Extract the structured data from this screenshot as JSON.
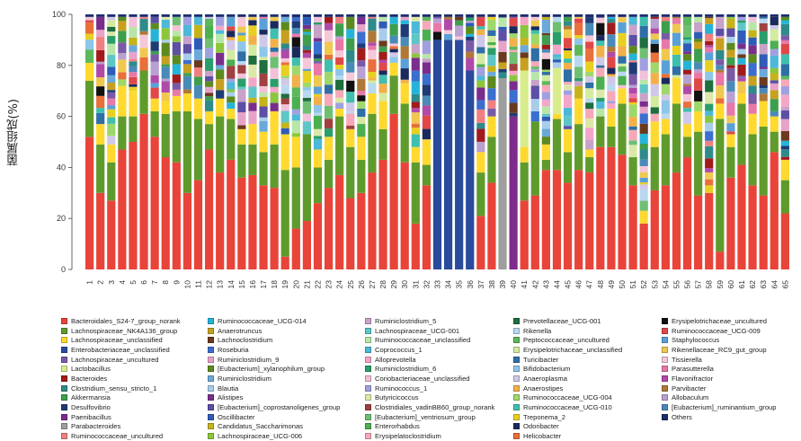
{
  "chart_data": {
    "type": "stacked-bar",
    "ylabel": "菌属组成(%)",
    "ylim": [
      0,
      100
    ],
    "yticks": [
      0,
      20,
      40,
      60,
      80,
      100
    ],
    "categories": [
      "1",
      "2",
      "3",
      "4",
      "5",
      "6",
      "7",
      "8",
      "9",
      "10",
      "11",
      "12",
      "13",
      "14",
      "15",
      "16",
      "17",
      "18",
      "19",
      "20",
      "21",
      "22",
      "23",
      "24",
      "25",
      "26",
      "27",
      "28",
      "29",
      "30",
      "31",
      "32",
      "33",
      "34",
      "35",
      "36",
      "37",
      "38",
      "39",
      "40",
      "41",
      "42",
      "43",
      "44",
      "45",
      "46",
      "47",
      "48",
      "49",
      "50",
      "51",
      "52",
      "53",
      "54",
      "55",
      "56",
      "57",
      "58",
      "59",
      "60",
      "61",
      "62",
      "63",
      "64",
      "65"
    ],
    "major_series": {
      "Bacteroidales_S24-7_group_norank": [
        52,
        30,
        27,
        47,
        50,
        61,
        52,
        44,
        42,
        30,
        35,
        47,
        38,
        43,
        36,
        37,
        33,
        32,
        5,
        16,
        19,
        26,
        32,
        37,
        28,
        30,
        38,
        43,
        61,
        42,
        18,
        33,
        0,
        0,
        0,
        0,
        21,
        34,
        0,
        0,
        27,
        29,
        39,
        39,
        34,
        39,
        38,
        48,
        48,
        45,
        33,
        18,
        31,
        33,
        38,
        44,
        29,
        30,
        7,
        36,
        41,
        33,
        29,
        46,
        22
      ],
      "Lachnospiraceae_NK4A136_group": [
        22,
        19,
        15,
        13,
        10,
        17,
        10,
        17,
        20,
        32,
        24,
        10,
        22,
        16,
        13,
        12,
        13,
        17,
        34,
        24,
        34,
        14,
        11,
        23,
        20,
        13,
        23,
        12,
        15,
        23,
        24,
        8,
        0,
        0,
        0,
        0,
        17,
        18,
        0,
        0,
        15,
        29,
        4,
        20,
        12,
        18,
        6,
        12,
        8,
        20,
        11,
        0,
        17,
        20,
        27,
        8,
        25,
        0,
        52,
        12,
        24,
        20,
        27,
        8,
        13
      ],
      "Lachnospiraceae_unclassified": [
        7,
        8,
        7,
        12,
        10,
        0,
        5,
        5,
        6,
        7,
        8,
        5,
        7,
        4,
        6,
        8,
        8,
        13,
        14,
        12,
        0,
        7,
        9,
        3,
        7,
        9,
        8,
        11,
        5,
        8,
        6,
        10,
        0,
        0,
        0,
        0,
        8,
        8,
        0,
        0,
        6,
        0,
        6,
        2,
        9,
        10,
        3,
        0,
        7,
        6,
        0,
        5,
        10,
        6,
        10,
        5,
        8,
        0,
        6,
        5,
        4,
        8,
        10,
        6,
        8
      ],
      "Enterobacteriaceae_unclassified": [
        0,
        0,
        0,
        0,
        0,
        0,
        0,
        0,
        0,
        0,
        0,
        0,
        0,
        0,
        0,
        0,
        0,
        0,
        0,
        0,
        0,
        0,
        0,
        0,
        0,
        0,
        0,
        0,
        0,
        0,
        0,
        0,
        90,
        90,
        90,
        78,
        0,
        0,
        0,
        0,
        0,
        0,
        0,
        0,
        0,
        0,
        0,
        0,
        0,
        0,
        0,
        0,
        0,
        0,
        0,
        0,
        0,
        0,
        0,
        0,
        0,
        0,
        0,
        0,
        0
      ],
      "Paenibacillus": [
        0,
        0,
        0,
        0,
        0,
        0,
        0,
        0,
        0,
        0,
        0,
        0,
        0,
        0,
        0,
        0,
        0,
        0,
        0,
        0,
        0,
        0,
        0,
        0,
        0,
        0,
        0,
        0,
        0,
        0,
        0,
        0,
        0,
        0,
        0,
        0,
        0,
        0,
        0,
        60,
        0,
        0,
        0,
        0,
        0,
        0,
        0,
        0,
        0,
        0,
        0,
        0,
        0,
        0,
        0,
        0,
        0,
        0,
        0,
        0,
        0,
        0,
        0,
        0,
        0
      ],
      "Parabacteroides": [
        0,
        0,
        0,
        0,
        0,
        0,
        0,
        0,
        0,
        0,
        0,
        0,
        0,
        0,
        0,
        0,
        0,
        0,
        0,
        0,
        0,
        0,
        0,
        0,
        0,
        0,
        0,
        0,
        0,
        0,
        0,
        0,
        0,
        0,
        0,
        0,
        0,
        0,
        75,
        0,
        0,
        0,
        0,
        0,
        0,
        0,
        0,
        0,
        0,
        0,
        0,
        0,
        0,
        0,
        0,
        0,
        0,
        0,
        0,
        0,
        0,
        0,
        0,
        0,
        0
      ],
      "Lactobacillus": [
        0,
        0,
        0,
        0,
        0,
        0,
        0,
        0,
        0,
        0,
        0,
        0,
        0,
        0,
        0,
        0,
        0,
        0,
        0,
        0,
        0,
        0,
        0,
        0,
        0,
        0,
        0,
        0,
        0,
        0,
        0,
        0,
        0,
        0,
        0,
        0,
        0,
        0,
        0,
        0,
        30,
        0,
        0,
        18,
        0,
        0,
        0,
        0,
        0,
        0,
        0,
        0,
        0,
        0,
        0,
        0,
        0,
        0,
        0,
        0,
        0,
        0,
        0,
        0,
        0
      ]
    },
    "legend_columns": [
      [
        "Bacteroidales_S24-7_group_norank",
        "Lachnospiraceae_NK4A136_group",
        "Lachnospiraceae_unclassified",
        "Enterobacteriaceae_unclassified",
        "Lachnospiraceae_uncultured",
        "Lactobacillus",
        "Bacteroides",
        "Clostridium_sensu_stricto_1",
        "Akkermansia",
        "Desulfovibrio",
        "Paenibacillus",
        "Parabacteroides",
        "Ruminococcaceae_uncultured"
      ],
      [
        "Ruminococcaceae_UCG-014",
        "Anaerotruncus",
        "Lachnoclostridium",
        "Roseburia",
        "Ruminiclostridium_9",
        "[Eubacterium]_xylanophilum_group",
        "Ruminiclostridium",
        "Blautia",
        "Alistipes",
        "[Eubacterium]_coprostanoligenes_group",
        "Oscillibacter",
        "Candidatus_Saccharimonas",
        "Lachnospiraceae_UCG-006"
      ],
      [
        "Ruminiclostridium_5",
        "Lachnospiraceae_UCG-001",
        "Ruminococcaceae_unclassified",
        "Coprococcus_1",
        "Alloprevotella",
        "Ruminiclostridium_6",
        "Coriobacteriaceae_unclassified",
        "Ruminococcus_1",
        "Butyricicoccus",
        "Clostridiales_vadinBB60_group_norank",
        "[Eubacterium]_ventriosum_group",
        "Enterorhabdus",
        "Erysipelatoclostridium"
      ],
      [
        "Prevotellaceae_UCG-001",
        "Rikenella",
        "Peptococcaceae_uncultured",
        "Erysipelotrichaceae_unclassified",
        "Turicibacter",
        "Bifidobacterium",
        "Anaeroplasma",
        "Anaerostipes",
        "Ruminococcaceae_UCG-004",
        "Ruminococcaceae_UCG-010",
        "Treponema_2",
        "Odoribacter",
        "Helicobacter"
      ],
      [
        "Erysipelotrichaceae_uncultured",
        "Ruminococcaceae_UCG-009",
        "Staphylococcus",
        "Rikenellaceae_RC9_gut_group",
        "Tissierella",
        "Parasutterella",
        "Flavonifractor",
        "Parvibacter",
        "Allobaculum",
        "[Eubacterium]_ruminantium_group",
        "Others"
      ]
    ],
    "legend_colors": [
      [
        "#e8443a",
        "#5f9b2c",
        "#ffd92f",
        "#2a4b9b",
        "#7a5aa6",
        "#d9ec8c",
        "#a11b1b",
        "#2f8a8a",
        "#3e9e4e",
        "#1f3b73",
        "#7d2b8c",
        "#9e9e9e",
        "#f08080"
      ],
      [
        "#25b4d8",
        "#c8a020",
        "#6b3a1e",
        "#3a6ecf",
        "#e7a3c7",
        "#5c8a1e",
        "#6aa9d9",
        "#a8cdea",
        "#7a2e8c",
        "#5c4fa5",
        "#2e5cb8",
        "#c5b31a",
        "#8cc63e"
      ],
      [
        "#c8a2c8",
        "#5ec6c6",
        "#b8e6a8",
        "#4db8d8",
        "#f4a6c8",
        "#2a9e6a",
        "#f2c0d8",
        "#a0a0e0",
        "#dce8a8",
        "#a04040",
        "#6fbf73",
        "#4caf50",
        "#f7a8b8"
      ],
      [
        "#1e6e3e",
        "#b8d8f0",
        "#5cb85c",
        "#d4eaa0",
        "#2f6fa6",
        "#8ec6e8",
        "#d0c8e8",
        "#f2b04a",
        "#9fd86a",
        "#3fbfae",
        "#e8d020",
        "#1a2a5c",
        "#e8703a"
      ],
      [
        "#111111",
        "#e04848",
        "#5aa0d8",
        "#f0c850",
        "#f4c8d8",
        "#e878a8",
        "#b04aa8",
        "#b07838",
        "#b8a0d0",
        "#4a8ab8",
        "#1c2e6e"
      ]
    ]
  }
}
